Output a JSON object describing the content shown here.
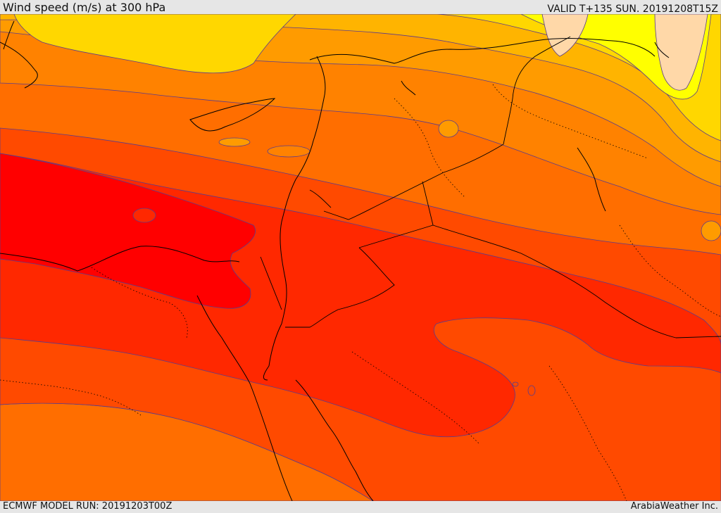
{
  "header": {
    "title": "Wind speed (m/s) at 300 hPa",
    "valid": "VALID T+135 SUN. 20191208T15Z"
  },
  "footer": {
    "model_run": "ECMWF MODEL RUN: 20191203T00Z",
    "credit": "ArabiaWeather Inc."
  },
  "map": {
    "variable": "wind speed",
    "level": "300 hPa",
    "units": "m/s",
    "palette": {
      "bg": "#ff6e00",
      "lightest": "#ffd8a8",
      "yellow": "#ffff00",
      "gold": "#ffd700",
      "amber": "#ffb400",
      "orange_light": "#ff9b00",
      "orange": "#ff8200",
      "orange_dark": "#ff6e00",
      "red_orange": "#ff4a00",
      "red": "#ff2800",
      "core": "#ff0000",
      "coastline": "#000000",
      "contour": "#5a3c8c"
    }
  }
}
